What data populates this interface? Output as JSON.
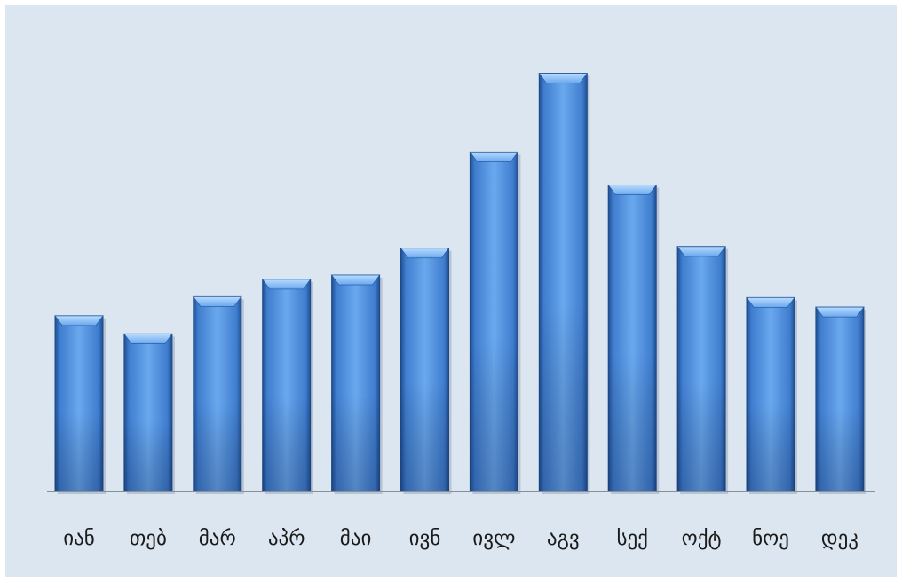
{
  "chart_data": {
    "type": "bar",
    "categories": [
      "იან",
      "თებ",
      "მარ",
      "აპრ",
      "მაი",
      "ივნ",
      "ივლ",
      "აგვ",
      "სექ",
      "ოქტ",
      "ნოე",
      "დეკ"
    ],
    "values": [
      203,
      182,
      225,
      245,
      250,
      281,
      392,
      483,
      354,
      283,
      224,
      213
    ],
    "title": "",
    "xlabel": "",
    "ylabel": "",
    "ylim": [
      0,
      500
    ],
    "grid": false,
    "legend": "none"
  },
  "colors": {
    "background": "#dce6f1",
    "bar": "#3f7dcf",
    "bar_dark": "#1f4f92",
    "bar_light": "#6aa8ee",
    "axis": "#8a8f96"
  }
}
